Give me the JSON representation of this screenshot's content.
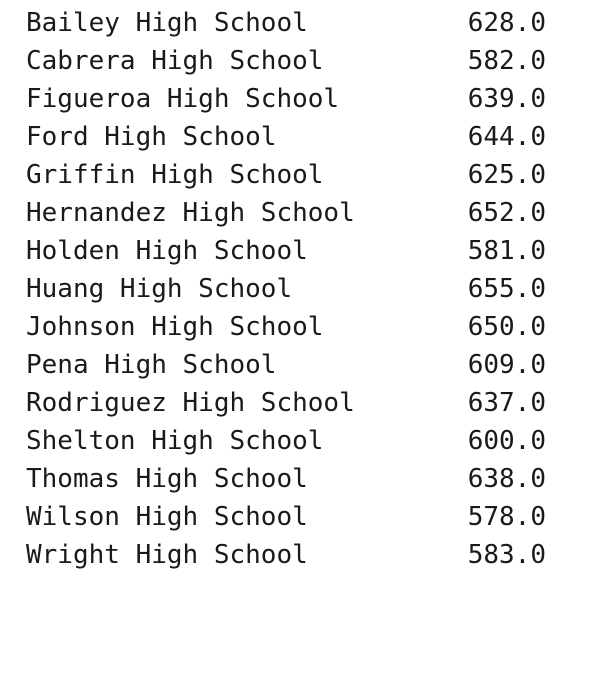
{
  "rows": [
    {
      "school": "Bailey High School",
      "value": "628.0"
    },
    {
      "school": "Cabrera High School",
      "value": "582.0"
    },
    {
      "school": "Figueroa High School",
      "value": "639.0"
    },
    {
      "school": "Ford High School",
      "value": "644.0"
    },
    {
      "school": "Griffin High School",
      "value": "625.0"
    },
    {
      "school": "Hernandez High School",
      "value": "652.0"
    },
    {
      "school": "Holden High School",
      "value": "581.0"
    },
    {
      "school": "Huang High School",
      "value": "655.0"
    },
    {
      "school": "Johnson High School",
      "value": "650.0"
    },
    {
      "school": "Pena High School",
      "value": "609.0"
    },
    {
      "school": "Rodriguez High School",
      "value": "637.0"
    },
    {
      "school": "Shelton High School",
      "value": "600.0"
    },
    {
      "school": "Thomas High School",
      "value": "638.0"
    },
    {
      "school": "Wilson High School",
      "value": "578.0"
    },
    {
      "school": "Wright High School",
      "value": "583.0"
    }
  ]
}
